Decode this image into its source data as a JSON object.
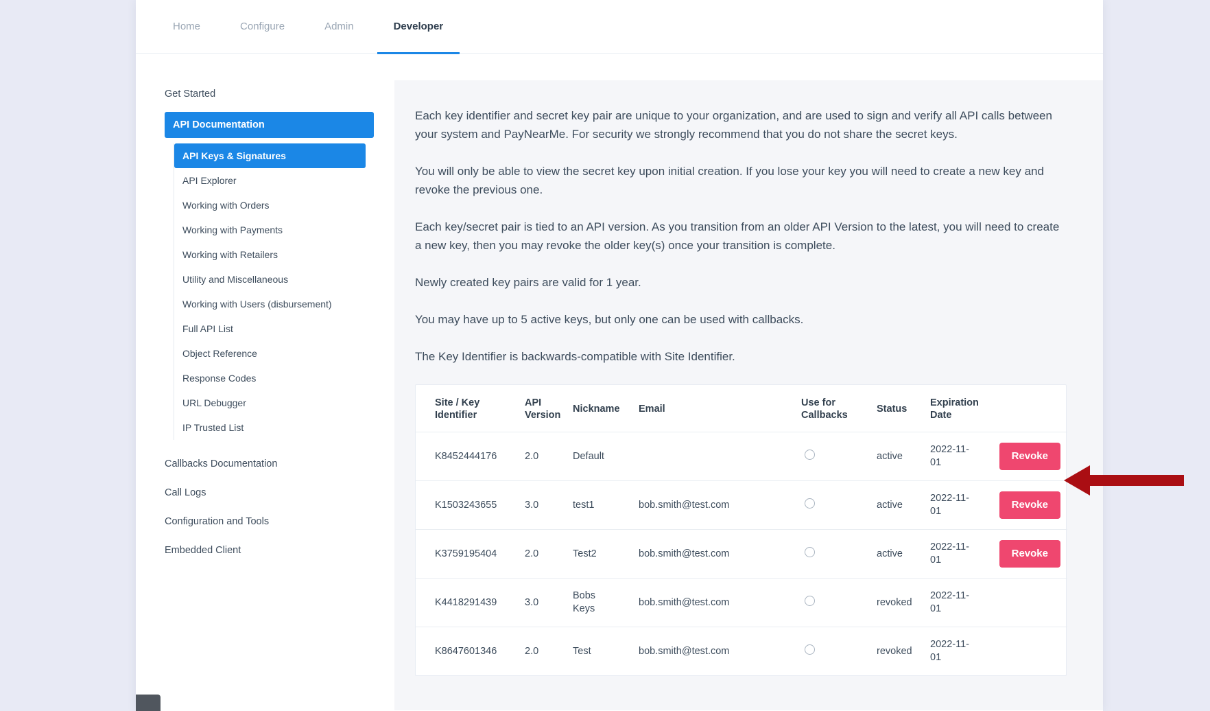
{
  "tabs": [
    {
      "label": "Home",
      "active": false
    },
    {
      "label": "Configure",
      "active": false
    },
    {
      "label": "Admin",
      "active": false
    },
    {
      "label": "Developer",
      "active": true
    }
  ],
  "sidebar": {
    "items": [
      {
        "label": "Get Started",
        "type": "top",
        "active": false
      },
      {
        "label": "API Documentation",
        "type": "top",
        "active": true
      },
      {
        "label": "API Keys & Signatures",
        "type": "sub",
        "active": true
      },
      {
        "label": "API Explorer",
        "type": "sub",
        "active": false
      },
      {
        "label": "Working with Orders",
        "type": "sub",
        "active": false
      },
      {
        "label": "Working with Payments",
        "type": "sub",
        "active": false
      },
      {
        "label": "Working with Retailers",
        "type": "sub",
        "active": false
      },
      {
        "label": "Utility and Miscellaneous",
        "type": "sub",
        "active": false
      },
      {
        "label": "Working with Users (disbursement)",
        "type": "sub",
        "active": false
      },
      {
        "label": "Full API List",
        "type": "sub",
        "active": false
      },
      {
        "label": "Object Reference",
        "type": "sub",
        "active": false
      },
      {
        "label": "Response Codes",
        "type": "sub",
        "active": false
      },
      {
        "label": "URL Debugger",
        "type": "sub",
        "active": false
      },
      {
        "label": "IP Trusted List",
        "type": "sub",
        "active": false
      },
      {
        "label": "Callbacks Documentation",
        "type": "top",
        "active": false
      },
      {
        "label": "Call Logs",
        "type": "top",
        "active": false
      },
      {
        "label": "Configuration and Tools",
        "type": "top",
        "active": false
      },
      {
        "label": "Embedded Client",
        "type": "top",
        "active": false
      }
    ]
  },
  "content": {
    "paragraphs": [
      "Each key identifier and secret key pair are unique to your organization, and are used to sign and verify all API calls between your system and PayNearMe. For security we strongly recommend that you do not share the secret keys.",
      "You will only be able to view the secret key upon initial creation. If you lose your key you will need to create a new key and revoke the previous one.",
      "Each key/secret pair is tied to an API version. As you transition from an older API Version to the latest, you will need to create a new key, then you may revoke the older key(s) once your transition is complete.",
      "Newly created key pairs are valid for 1 year.",
      "You may have up to 5 active keys, but only one can be used with callbacks.",
      "The Key Identifier is backwards-compatible with Site Identifier."
    ],
    "table": {
      "headers": [
        "Site / Key Identifier",
        "API Version",
        "Nickname",
        "Email",
        "Use for Callbacks",
        "Status",
        "Expiration Date",
        ""
      ],
      "revoke_label": "Revoke",
      "rows": [
        {
          "identifier": "K8452444176",
          "api_version": "2.0",
          "nickname": "Default",
          "email": "",
          "use_for_callbacks": false,
          "status": "active",
          "expiration_date": "2022-11-01",
          "can_revoke": true
        },
        {
          "identifier": "K1503243655",
          "api_version": "3.0",
          "nickname": "test1",
          "email": "bob.smith@test.com",
          "use_for_callbacks": false,
          "status": "active",
          "expiration_date": "2022-11-01",
          "can_revoke": true
        },
        {
          "identifier": "K3759195404",
          "api_version": "2.0",
          "nickname": "Test2",
          "email": "bob.smith@test.com",
          "use_for_callbacks": false,
          "status": "active",
          "expiration_date": "2022-11-01",
          "can_revoke": true
        },
        {
          "identifier": "K4418291439",
          "api_version": "3.0",
          "nickname": "Bobs Keys",
          "email": "bob.smith@test.com",
          "use_for_callbacks": false,
          "status": "revoked",
          "expiration_date": "2022-11-01",
          "can_revoke": false
        },
        {
          "identifier": "K8647601346",
          "api_version": "2.0",
          "nickname": "Test",
          "email": "bob.smith@test.com",
          "use_for_callbacks": false,
          "status": "revoked",
          "expiration_date": "2022-11-01",
          "can_revoke": false
        }
      ]
    }
  },
  "annotation": {
    "type": "arrow",
    "direction": "left",
    "points_at": "first Revoke button"
  },
  "colors": {
    "accent_blue": "#1b87e6",
    "revoke_pink": "#ef476f",
    "arrow_red": "#aa0e13",
    "page_background": "#e8eaf5"
  }
}
